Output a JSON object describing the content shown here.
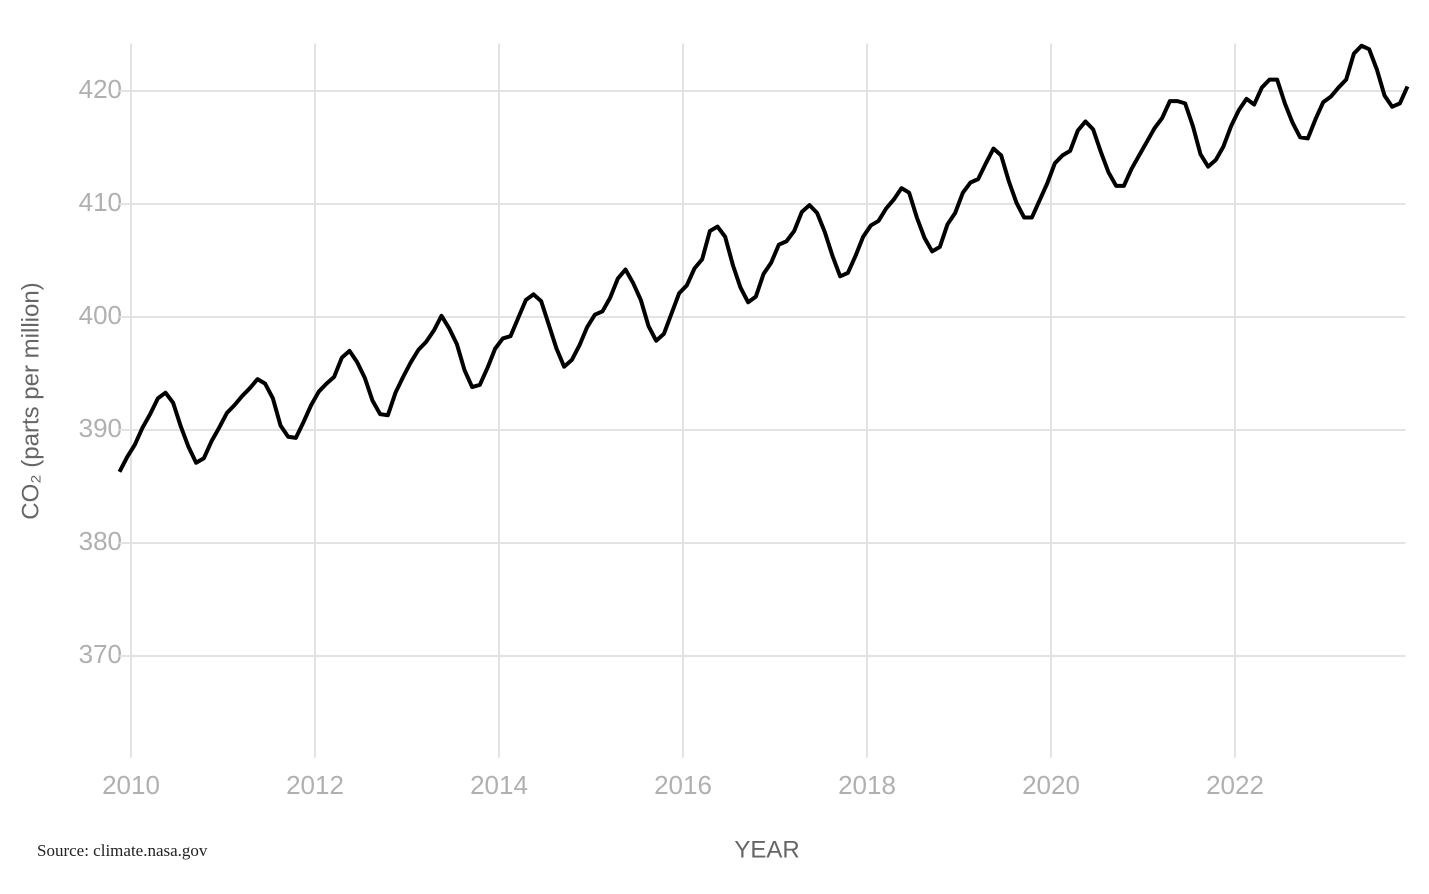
{
  "chart_data": {
    "type": "line",
    "x_label": "YEAR",
    "y_label": "CO₂ (parts per million)",
    "source": "Source: climate.nasa.gov",
    "color": "#000000",
    "grid": true,
    "xlim": [
      2009.875,
      2023.875
    ],
    "xticks": [
      2010,
      2012,
      2014,
      2016,
      2018,
      2020,
      2022
    ],
    "ylim": [
      361,
      424.2
    ],
    "yticks": [
      370,
      380,
      390,
      400,
      410,
      420
    ],
    "x": [
      2009.875,
      2009.958,
      2010.042,
      2010.125,
      2010.208,
      2010.292,
      2010.375,
      2010.458,
      2010.542,
      2010.625,
      2010.708,
      2010.792,
      2010.875,
      2010.958,
      2011.042,
      2011.125,
      2011.208,
      2011.292,
      2011.375,
      2011.458,
      2011.542,
      2011.625,
      2011.708,
      2011.792,
      2011.875,
      2011.958,
      2012.042,
      2012.125,
      2012.208,
      2012.292,
      2012.375,
      2012.458,
      2012.542,
      2012.625,
      2012.708,
      2012.792,
      2012.875,
      2012.958,
      2013.042,
      2013.125,
      2013.208,
      2013.292,
      2013.375,
      2013.458,
      2013.542,
      2013.625,
      2013.708,
      2013.792,
      2013.875,
      2013.958,
      2014.042,
      2014.125,
      2014.208,
      2014.292,
      2014.375,
      2014.458,
      2014.542,
      2014.625,
      2014.708,
      2014.792,
      2014.875,
      2014.958,
      2015.042,
      2015.125,
      2015.208,
      2015.292,
      2015.375,
      2015.458,
      2015.542,
      2015.625,
      2015.708,
      2015.792,
      2015.875,
      2015.958,
      2016.042,
      2016.125,
      2016.208,
      2016.292,
      2016.375,
      2016.458,
      2016.542,
      2016.625,
      2016.708,
      2016.792,
      2016.875,
      2016.958,
      2017.042,
      2017.125,
      2017.208,
      2017.292,
      2017.375,
      2017.458,
      2017.542,
      2017.625,
      2017.708,
      2017.792,
      2017.875,
      2017.958,
      2018.042,
      2018.125,
      2018.208,
      2018.292,
      2018.375,
      2018.458,
      2018.542,
      2018.625,
      2018.708,
      2018.792,
      2018.875,
      2018.958,
      2019.042,
      2019.125,
      2019.208,
      2019.292,
      2019.375,
      2019.458,
      2019.542,
      2019.625,
      2019.708,
      2019.792,
      2019.875,
      2019.958,
      2020.042,
      2020.125,
      2020.208,
      2020.292,
      2020.375,
      2020.458,
      2020.542,
      2020.625,
      2020.708,
      2020.792,
      2020.875,
      2020.958,
      2021.042,
      2021.125,
      2021.208,
      2021.292,
      2021.375,
      2021.458,
      2021.542,
      2021.625,
      2021.708,
      2021.792,
      2021.875,
      2021.958,
      2022.042,
      2022.125,
      2022.208,
      2022.292,
      2022.375,
      2022.458,
      2022.542,
      2022.625,
      2022.708,
      2022.792,
      2022.875,
      2022.958,
      2023.042,
      2023.125,
      2023.208,
      2023.292,
      2023.375,
      2023.458,
      2023.542,
      2023.625,
      2023.708,
      2023.792,
      2023.875
    ],
    "values": [
      386.3,
      387.6,
      388.7,
      390.2,
      391.4,
      392.8,
      393.3,
      392.4,
      390.3,
      388.5,
      387.1,
      387.5,
      389.0,
      390.2,
      391.5,
      392.2,
      393.0,
      393.7,
      394.5,
      394.1,
      392.8,
      390.4,
      389.4,
      389.3,
      390.7,
      392.2,
      393.4,
      394.1,
      394.7,
      396.4,
      397.0,
      396.0,
      394.6,
      392.6,
      391.4,
      391.3,
      393.3,
      394.7,
      396.0,
      397.1,
      397.8,
      398.8,
      400.1,
      399.0,
      397.6,
      395.3,
      393.8,
      394.0,
      395.5,
      397.2,
      398.1,
      398.3,
      399.9,
      401.5,
      402.0,
      401.4,
      399.3,
      397.2,
      395.6,
      396.2,
      397.5,
      399.1,
      400.2,
      400.5,
      401.7,
      403.4,
      404.2,
      403.0,
      401.5,
      399.2,
      397.9,
      398.5,
      400.3,
      402.1,
      402.8,
      404.3,
      405.1,
      407.6,
      408.0,
      407.1,
      404.6,
      402.6,
      401.3,
      401.8,
      403.8,
      404.8,
      406.4,
      406.7,
      407.6,
      409.3,
      409.9,
      409.2,
      407.5,
      405.4,
      403.6,
      403.9,
      405.4,
      407.1,
      408.1,
      408.5,
      409.6,
      410.4,
      411.4,
      411.0,
      408.8,
      407.0,
      405.8,
      406.2,
      408.2,
      409.2,
      411.0,
      411.9,
      412.2,
      413.6,
      414.9,
      414.3,
      412.0,
      410.1,
      408.8,
      408.8,
      410.3,
      411.8,
      413.6,
      414.3,
      414.7,
      416.5,
      417.3,
      416.6,
      414.6,
      412.8,
      411.6,
      411.6,
      413.1,
      414.3,
      415.5,
      416.7,
      417.6,
      419.1,
      419.1,
      418.9,
      416.9,
      414.4,
      413.3,
      413.9,
      415.1,
      416.9,
      418.3,
      419.3,
      418.8,
      420.3,
      421.0,
      421.0,
      418.9,
      417.2,
      415.9,
      415.8,
      417.5,
      419.0,
      419.5,
      420.3,
      421.0,
      423.3,
      424.0,
      423.7,
      421.9,
      419.6,
      418.6,
      418.9,
      420.4
    ]
  }
}
